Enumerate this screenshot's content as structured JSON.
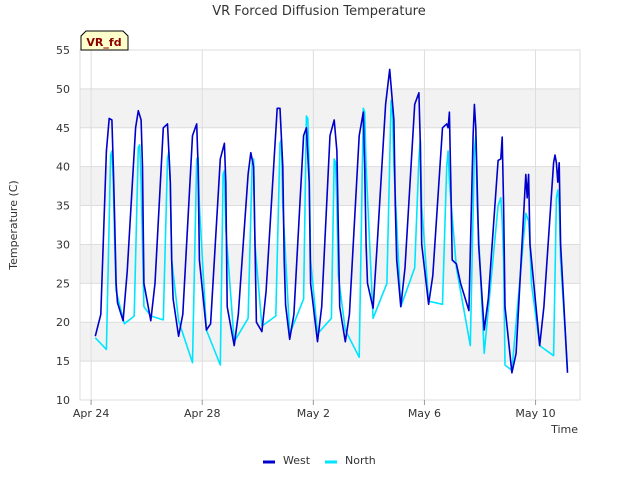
{
  "chart_data": {
    "type": "line",
    "title": "VR Forced Diffusion Temperature",
    "badge": "VR_fd",
    "xlabel": "Time",
    "ylabel": "Temperature (C)",
    "ylim": [
      10,
      55
    ],
    "yticks": [
      10,
      15,
      20,
      25,
      30,
      35,
      40,
      45,
      50,
      55
    ],
    "xlim": [
      -0.4,
      17.6
    ],
    "xticks": [
      {
        "x": 0,
        "label": "Apr 24"
      },
      {
        "x": 4,
        "label": "Apr 28"
      },
      {
        "x": 8,
        "label": "May 2"
      },
      {
        "x": 12,
        "label": "May 6"
      },
      {
        "x": 16,
        "label": "May 10"
      }
    ],
    "grid": true,
    "legend": "bottom-center",
    "series": [
      {
        "name": "West",
        "color": "#0000cc",
        "x": [
          0.15,
          0.35,
          0.55,
          0.65,
          0.75,
          0.8,
          0.85,
          0.9,
          0.95,
          1.15,
          1.3,
          1.6,
          1.7,
          1.8,
          1.85,
          1.9,
          2.15,
          2.3,
          2.6,
          2.75,
          2.85,
          2.9,
          2.95,
          3.15,
          3.3,
          3.65,
          3.8,
          3.85,
          3.9,
          4.15,
          4.3,
          4.65,
          4.8,
          4.85,
          4.9,
          5.15,
          5.3,
          5.65,
          5.75,
          5.85,
          5.9,
          5.95,
          6.15,
          6.3,
          6.7,
          6.8,
          6.9,
          6.95,
          7.0,
          7.15,
          7.3,
          7.65,
          7.75,
          7.85,
          7.9,
          8.15,
          8.3,
          8.6,
          8.75,
          8.85,
          8.9,
          8.95,
          9.15,
          9.3,
          9.65,
          9.8,
          9.85,
          9.9,
          9.95,
          10.15,
          10.3,
          10.6,
          10.75,
          10.9,
          10.95,
          11.0,
          11.15,
          11.3,
          11.65,
          11.8,
          11.85,
          11.9,
          12.15,
          12.3,
          12.65,
          12.8,
          12.85,
          12.9,
          12.95,
          13.0,
          13.15,
          13.3,
          13.6,
          13.75,
          13.8,
          13.85,
          13.95,
          14.15,
          14.3,
          14.65,
          14.75,
          14.8,
          14.85,
          14.9,
          15.15,
          15.3,
          15.65,
          15.7,
          15.75,
          15.8,
          16.15,
          16.3,
          16.65,
          16.7,
          16.75,
          16.8,
          16.85,
          16.9,
          17.15
        ],
        "y": [
          18.2,
          21,
          42,
          46.2,
          46,
          40,
          33,
          25,
          22.5,
          20.2,
          26.5,
          45,
          47.2,
          46,
          40,
          25,
          20.2,
          25,
          45,
          45.5,
          38,
          28,
          23,
          18.2,
          21,
          44,
          45.5,
          40,
          28,
          19,
          19.8,
          41,
          43,
          38,
          22,
          17,
          21,
          39,
          41.8,
          40,
          30,
          20,
          18.8,
          24,
          47.5,
          47.5,
          40,
          28,
          22.2,
          17.8,
          21,
          44,
          45,
          38,
          25,
          17.5,
          22,
          44,
          46,
          42,
          32,
          22,
          17.5,
          21,
          44,
          47,
          40,
          30,
          25,
          21.8,
          30,
          48,
          52.5,
          46,
          35,
          28,
          22,
          27,
          48,
          49.5,
          43,
          30,
          22.3,
          26,
          45,
          45.5,
          45,
          47,
          38,
          28,
          27.5,
          25,
          21.5,
          44,
          48,
          45,
          30,
          19,
          23,
          40.8,
          41,
          43.8,
          35,
          22,
          13.5,
          16,
          39,
          36,
          39,
          30,
          17,
          22,
          40.5,
          41.5,
          40.5,
          38,
          40.5,
          30,
          13.5
        ]
      },
      {
        "name": "North",
        "color": "#00e5ff",
        "x": [
          0.15,
          0.55,
          0.7,
          0.75,
          0.8,
          0.85,
          0.9,
          1.2,
          1.55,
          1.7,
          1.75,
          1.8,
          1.85,
          1.9,
          2.15,
          2.6,
          2.75,
          2.8,
          2.85,
          2.9,
          3.15,
          3.65,
          3.8,
          3.85,
          3.9,
          4.15,
          4.65,
          4.75,
          4.8,
          4.85,
          5.15,
          5.65,
          5.8,
          5.85,
          5.9,
          6.15,
          6.65,
          6.8,
          6.85,
          6.9,
          7.15,
          7.65,
          7.75,
          7.8,
          7.85,
          7.9,
          8.15,
          8.65,
          8.75,
          8.8,
          8.85,
          8.9,
          9.15,
          9.65,
          9.8,
          9.85,
          9.9,
          10.15,
          10.65,
          10.8,
          10.85,
          10.9,
          11.15,
          11.65,
          11.8,
          11.85,
          11.9,
          12.15,
          12.65,
          12.8,
          12.85,
          12.9,
          13.15,
          13.65,
          13.8,
          13.85,
          13.9,
          14.15,
          14.65,
          14.75,
          14.8,
          14.85,
          14.9,
          15.15,
          15.65,
          15.75,
          15.8,
          15.85,
          16.15,
          16.65,
          16.75,
          16.8,
          16.85,
          16.9,
          17.15
        ],
        "y": [
          18,
          16.5,
          41.5,
          42,
          38,
          30,
          24,
          19.8,
          20.8,
          42.5,
          42.8,
          38,
          30,
          22,
          20.8,
          20.3,
          41,
          42,
          38,
          28,
          20.2,
          14.8,
          41,
          41.2,
          35,
          19,
          14.5,
          39,
          39.5,
          32,
          17.5,
          20.5,
          40.5,
          41,
          30,
          19.5,
          20.8,
          43,
          43.5,
          35,
          18.5,
          23,
          46.5,
          46.2,
          40,
          28,
          18.5,
          20.5,
          41,
          40.5,
          35,
          26,
          19,
          15.5,
          47.5,
          47,
          40,
          20.5,
          25,
          48.5,
          47,
          40,
          22,
          27,
          41,
          43.5,
          35,
          22.7,
          22.3,
          40,
          42,
          38,
          27,
          17,
          42,
          44,
          35,
          16,
          35,
          36,
          33,
          28,
          14.5,
          13.8,
          34,
          33,
          30,
          25,
          17,
          15.7,
          36,
          37,
          35,
          28,
          14
        ]
      }
    ]
  }
}
